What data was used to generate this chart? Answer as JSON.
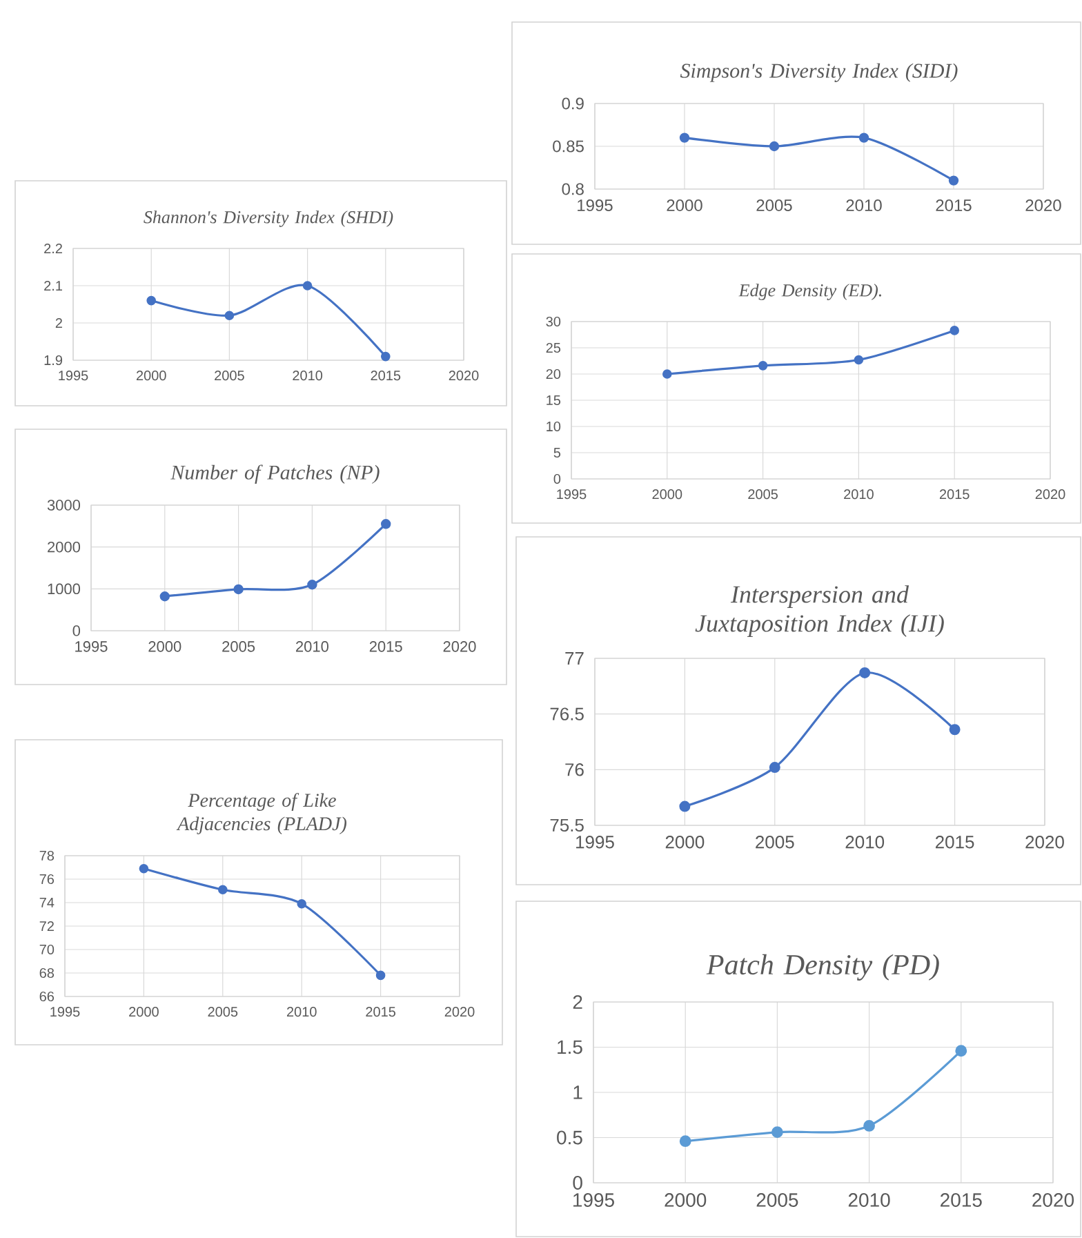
{
  "chart_data": [
    {
      "type": "line",
      "title": "Shannon's Diversity Index (SHDI)",
      "x": [
        2000,
        2005,
        2010,
        2015
      ],
      "values": [
        2.06,
        2.02,
        2.1,
        1.91
      ],
      "color": "#4472c4",
      "xlim": [
        1995,
        2020
      ],
      "xticks": [
        1995,
        2000,
        2005,
        2010,
        2015,
        2020
      ],
      "ylim": [
        1.9,
        2.2
      ],
      "yticks": [
        1.9,
        2,
        2.1,
        2.2
      ],
      "grid": true,
      "marker": "circle"
    },
    {
      "type": "line",
      "title": "Number of Patches (NP)",
      "x": [
        2000,
        2005,
        2010,
        2015
      ],
      "values": [
        820,
        990,
        1100,
        2550
      ],
      "color": "#4472c4",
      "xlim": [
        1995,
        2020
      ],
      "xticks": [
        1995,
        2000,
        2005,
        2010,
        2015,
        2020
      ],
      "ylim": [
        0,
        3000
      ],
      "yticks": [
        0,
        1000,
        2000,
        3000
      ],
      "grid": true,
      "marker": "circle"
    },
    {
      "type": "line",
      "title": "Percentage of Like Adjacencies (PLADJ)",
      "x": [
        2000,
        2005,
        2010,
        2015
      ],
      "values": [
        76.9,
        75.1,
        73.9,
        67.8
      ],
      "color": "#4472c4",
      "xlim": [
        1995,
        2020
      ],
      "xticks": [
        1995,
        2000,
        2005,
        2010,
        2015,
        2020
      ],
      "ylim": [
        66,
        78
      ],
      "yticks": [
        66,
        68,
        70,
        72,
        74,
        76,
        78
      ],
      "grid": true,
      "marker": "circle"
    },
    {
      "type": "line",
      "title": "Simpson's Diversity Index (SIDI)",
      "x": [
        2000,
        2005,
        2010,
        2015
      ],
      "values": [
        0.86,
        0.85,
        0.86,
        0.81
      ],
      "color": "#4472c4",
      "xlim": [
        1995,
        2020
      ],
      "xticks": [
        1995,
        2000,
        2005,
        2010,
        2015,
        2020
      ],
      "ylim": [
        0.8,
        0.9
      ],
      "yticks": [
        0.8,
        0.85,
        0.9
      ],
      "grid": true,
      "marker": "circle"
    },
    {
      "type": "line",
      "title": "Edge Density (ED).",
      "x": [
        2000,
        2005,
        2010,
        2015
      ],
      "values": [
        20,
        21.6,
        22.7,
        28.3
      ],
      "color": "#4472c4",
      "xlim": [
        1995,
        2020
      ],
      "xticks": [
        1995,
        2000,
        2005,
        2010,
        2015,
        2020
      ],
      "ylim": [
        0,
        30
      ],
      "yticks": [
        0,
        5,
        10,
        15,
        20,
        25,
        30
      ],
      "grid": true,
      "marker": "circle"
    },
    {
      "type": "line",
      "title": "Interspersion and Juxtaposition Index (IJI)",
      "x": [
        2000,
        2005,
        2010,
        2015
      ],
      "values": [
        75.67,
        76.02,
        76.87,
        76.36
      ],
      "color": "#4472c4",
      "xlim": [
        1995,
        2020
      ],
      "xticks": [
        1995,
        2000,
        2005,
        2010,
        2015,
        2020
      ],
      "ylim": [
        75.5,
        77
      ],
      "yticks": [
        75.5,
        76,
        76.5,
        77
      ],
      "grid": true,
      "marker": "circle"
    },
    {
      "type": "line",
      "title": "Patch Density (PD)",
      "x": [
        2000,
        2005,
        2010,
        2015
      ],
      "values": [
        0.46,
        0.56,
        0.63,
        1.46
      ],
      "color": "#5b9bd5",
      "xlim": [
        1995,
        2020
      ],
      "xticks": [
        1995,
        2000,
        2005,
        2010,
        2015,
        2020
      ],
      "ylim": [
        0,
        2
      ],
      "yticks": [
        0,
        0.5,
        1,
        1.5,
        2
      ],
      "grid": true,
      "marker": "circle"
    }
  ]
}
